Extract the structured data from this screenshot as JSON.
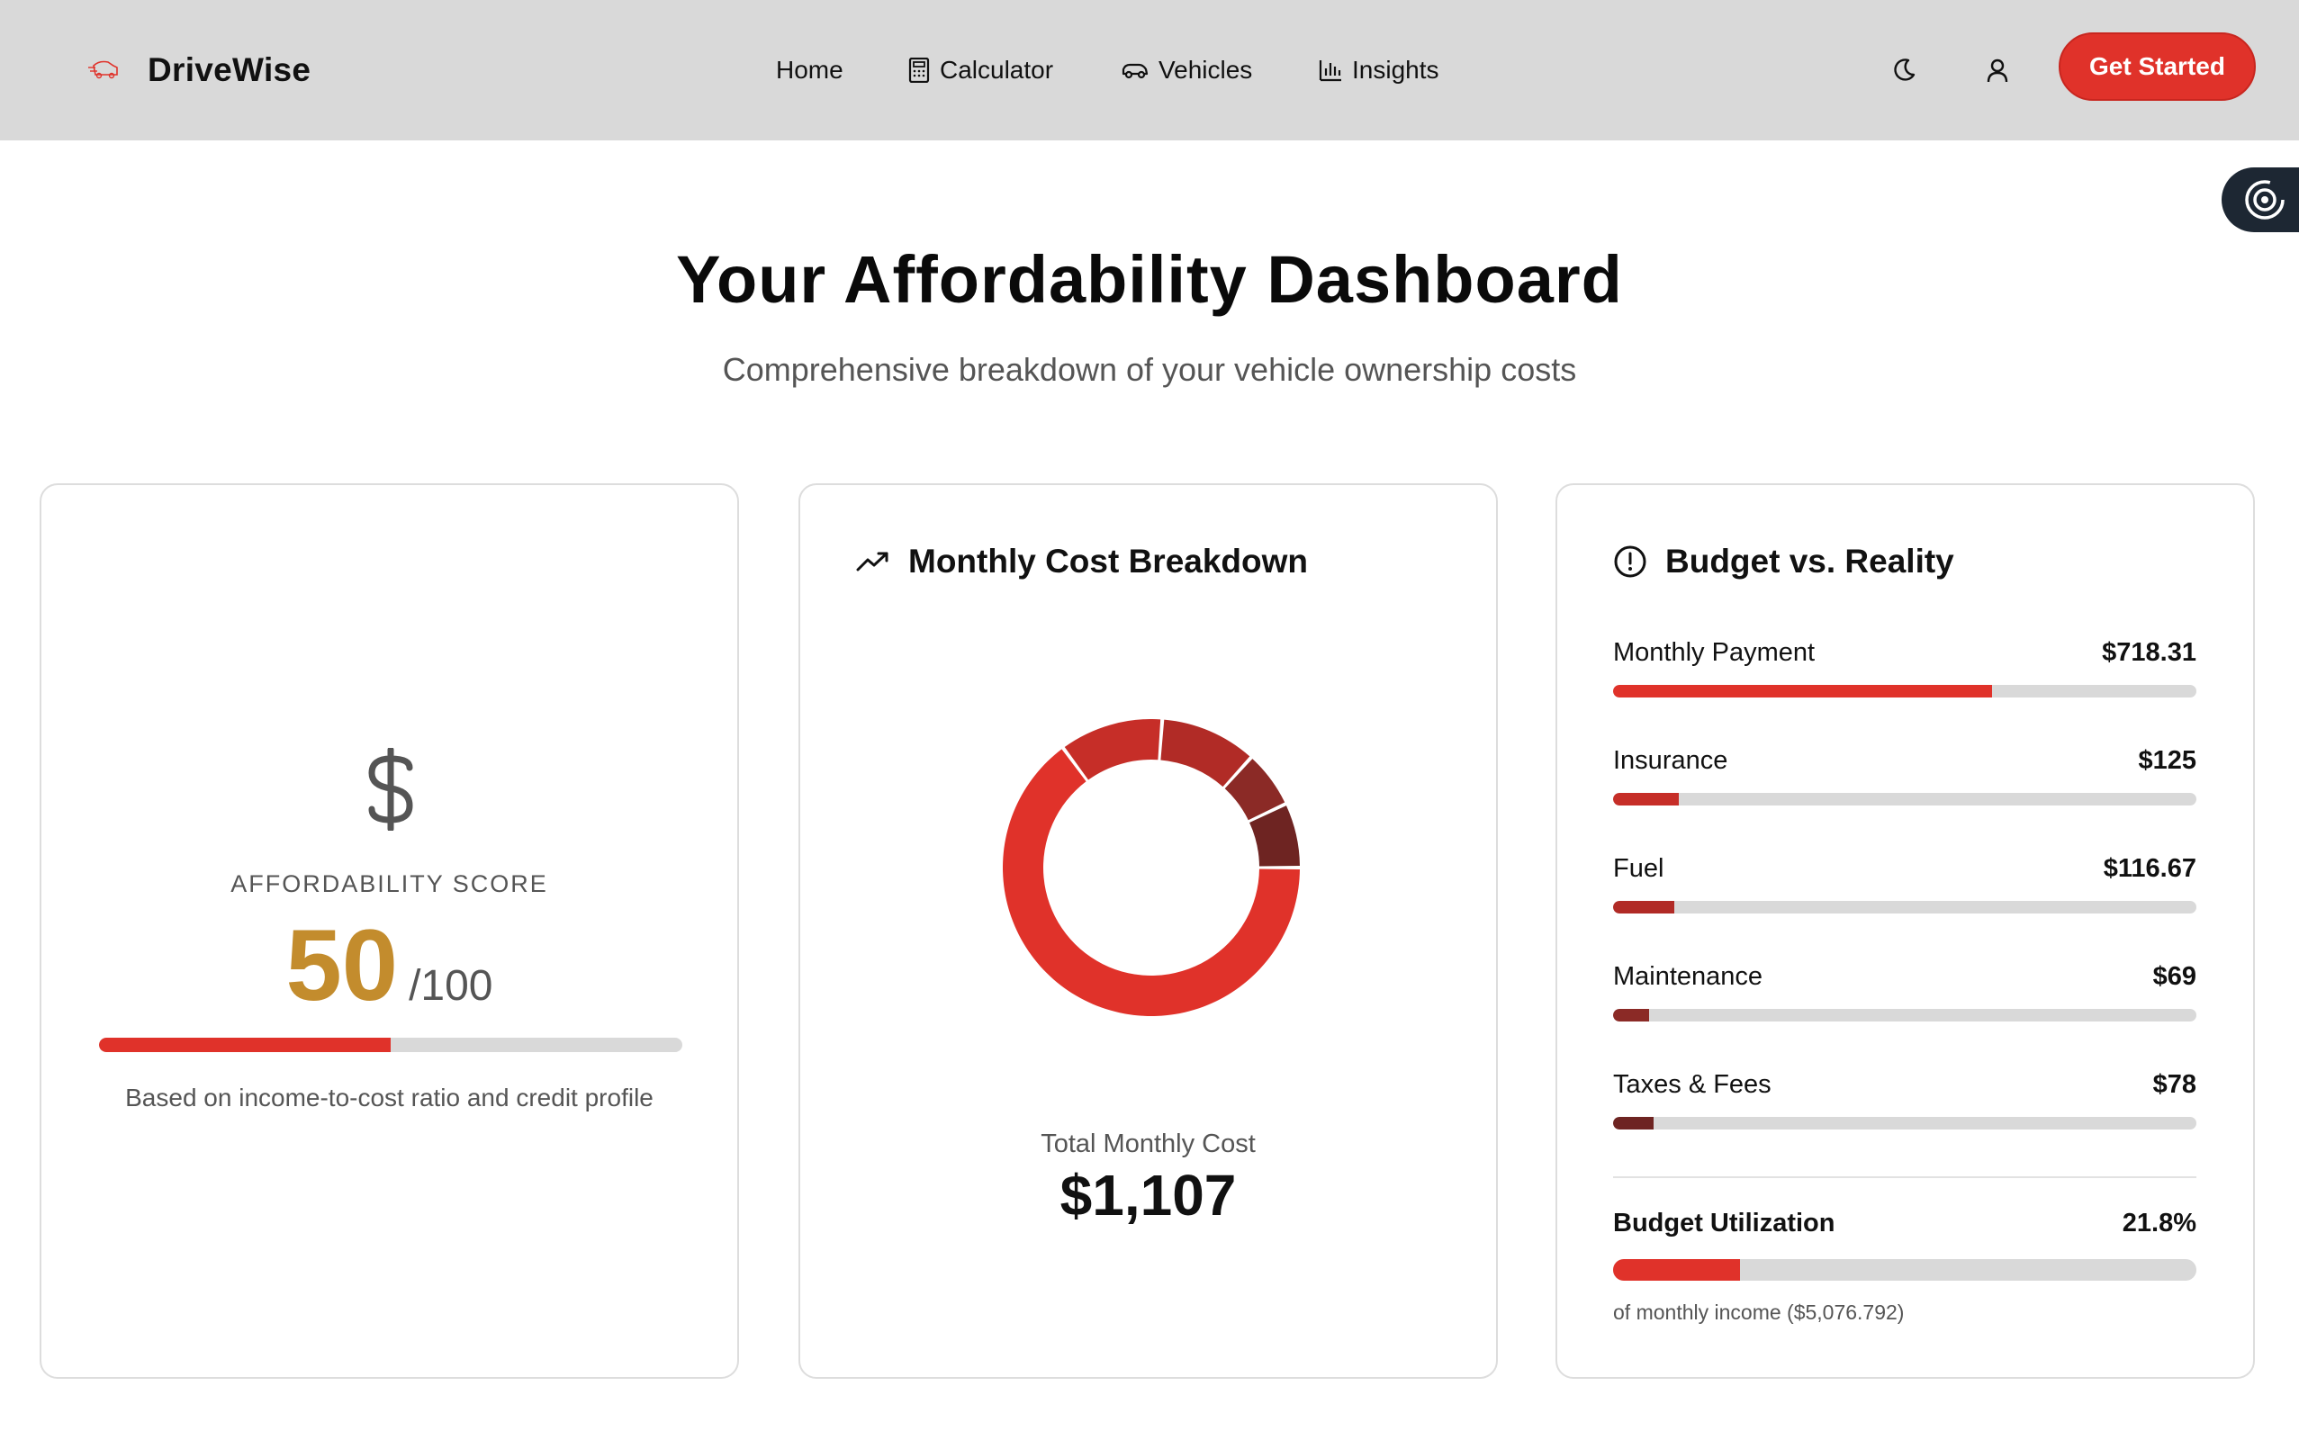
{
  "header": {
    "brand": "DriveWise",
    "nav": [
      {
        "label": "Home",
        "icon": ""
      },
      {
        "label": "Calculator",
        "icon": "calculator-icon"
      },
      {
        "label": "Vehicles",
        "icon": "car-icon"
      },
      {
        "label": "Insights",
        "icon": "bar-chart-icon"
      }
    ],
    "cta_label": "Get Started",
    "theme_icon": "moon-icon",
    "user_icon": "user-icon"
  },
  "colors": {
    "accent": "#e0322a",
    "header_bg": "#d9d9d9",
    "score": "#c38c2d",
    "dark_red": "#8b2a26",
    "maroon": "#6e2422"
  },
  "page": {
    "title": "Your Affordability Dashboard",
    "subtitle": "Comprehensive breakdown of your vehicle ownership costs"
  },
  "score_card": {
    "label": "AFFORDABILITY SCORE",
    "score": "50",
    "max": "/100",
    "progress_fraction": 0.5,
    "note": "Based on income-to-cost ratio and credit profile"
  },
  "breakdown_card": {
    "title": "Monthly Cost Breakdown",
    "total_label": "Total Monthly Cost",
    "total_value": "$1,107"
  },
  "chart_data": {
    "type": "pie",
    "categories": [
      "Monthly Payment",
      "Insurance",
      "Fuel",
      "Maintenance",
      "Taxes & Fees"
    ],
    "values": [
      718.31,
      125,
      116.67,
      69,
      78
    ],
    "colors": [
      "#e0322a",
      "#c62e28",
      "#b12b26",
      "#8b2a26",
      "#6e2422"
    ],
    "title": "",
    "legend": "none"
  },
  "budget_card": {
    "title": "Budget vs. Reality",
    "items": [
      {
        "label": "Monthly Payment",
        "amount": "$718.31",
        "fraction": 0.649,
        "color": "#e0322a"
      },
      {
        "label": "Insurance",
        "amount": "$125",
        "fraction": 0.113,
        "color": "#c62e28"
      },
      {
        "label": "Fuel",
        "amount": "$116.67",
        "fraction": 0.105,
        "color": "#b12b26"
      },
      {
        "label": "Maintenance",
        "amount": "$69",
        "fraction": 0.062,
        "color": "#8b2a26"
      },
      {
        "label": "Taxes & Fees",
        "amount": "$78",
        "fraction": 0.07,
        "color": "#6e2422"
      }
    ],
    "utilization_label": "Budget Utilization",
    "utilization_value": "21.8%",
    "utilization_fraction": 0.218,
    "utilization_note": "of monthly income ($5,076.792)"
  }
}
